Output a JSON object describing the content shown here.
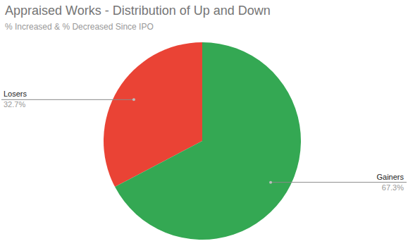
{
  "chart_data": {
    "type": "pie",
    "title": "Appraised Works - Distribution of Up and Down",
    "subtitle": "% Increased & % Decreased Since IPO",
    "categories": [
      "Losers",
      "Gainers"
    ],
    "values": [
      32.7,
      67.3
    ],
    "value_labels": [
      "32.7%",
      "67.3%"
    ],
    "colors": [
      "#ea4335",
      "#34a853"
    ],
    "data_labels": true
  }
}
